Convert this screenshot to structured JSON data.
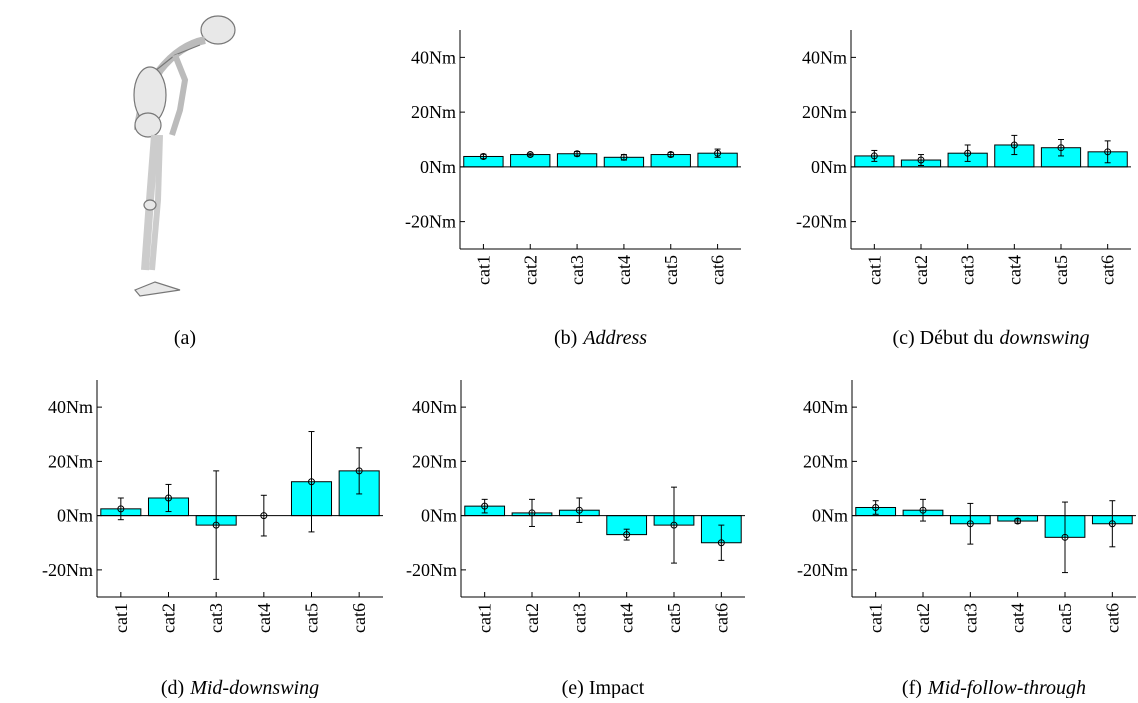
{
  "figure_a": {
    "caption": "(a)"
  },
  "chart_data": [
    {
      "type": "bar",
      "caption": [
        {
          "text": "(b)",
          "italic": false
        },
        {
          "text": "Address",
          "italic": true
        }
      ],
      "categories": [
        "cat1",
        "cat2",
        "cat3",
        "cat4",
        "cat5",
        "cat6"
      ],
      "values": [
        3.8,
        4.5,
        4.8,
        3.5,
        4.5,
        5
      ],
      "errors": [
        0.8,
        0.5,
        0.8,
        1,
        0.8,
        1.5
      ],
      "color": "#00ffff",
      "ylim": [
        -30,
        50
      ],
      "yticks": [
        {
          "value": -20,
          "label": "-20Nm"
        },
        {
          "value": 0,
          "label": "0Nm"
        },
        {
          "value": 20,
          "label": "20Nm"
        },
        {
          "value": 40,
          "label": "40Nm"
        }
      ]
    },
    {
      "type": "bar",
      "caption": [
        {
          "text": "(c) Début du",
          "italic": false
        },
        {
          "text": "downswing",
          "italic": true
        }
      ],
      "categories": [
        "cat1",
        "cat2",
        "cat3",
        "cat4",
        "cat5",
        "cat6"
      ],
      "values": [
        4,
        2.5,
        5,
        8,
        7,
        5.5
      ],
      "errors": [
        2,
        2,
        3,
        3.5,
        3,
        4
      ],
      "color": "#00ffff",
      "ylim": [
        -30,
        50
      ],
      "yticks": [
        {
          "value": -20,
          "label": "-20Nm"
        },
        {
          "value": 0,
          "label": "0Nm"
        },
        {
          "value": 20,
          "label": "20Nm"
        },
        {
          "value": 40,
          "label": "40Nm"
        }
      ]
    },
    {
      "type": "bar",
      "caption": [
        {
          "text": "(d)",
          "italic": false
        },
        {
          "text": "Mid-downswing",
          "italic": true
        }
      ],
      "categories": [
        "cat1",
        "cat2",
        "cat3",
        "cat4",
        "cat5",
        "cat6"
      ],
      "values": [
        2.5,
        6.5,
        -3.5,
        0,
        12.5,
        16.5
      ],
      "errors": [
        4,
        5,
        20,
        7.5,
        18.5,
        8.5
      ],
      "color": "#00ffff",
      "ylim": [
        -30,
        50
      ],
      "yticks": [
        {
          "value": -20,
          "label": "-20Nm"
        },
        {
          "value": 0,
          "label": "0Nm"
        },
        {
          "value": 20,
          "label": "20Nm"
        },
        {
          "value": 40,
          "label": "40Nm"
        }
      ]
    },
    {
      "type": "bar",
      "caption": [
        {
          "text": "(e) Impact",
          "italic": false
        }
      ],
      "categories": [
        "cat1",
        "cat2",
        "cat3",
        "cat4",
        "cat5",
        "cat6"
      ],
      "values": [
        3.5,
        1,
        2,
        -7,
        -3.5,
        -10
      ],
      "errors": [
        2.5,
        5,
        4.5,
        2,
        14,
        6.5
      ],
      "color": "#00ffff",
      "ylim": [
        -30,
        50
      ],
      "yticks": [
        {
          "value": -20,
          "label": "-20Nm"
        },
        {
          "value": 0,
          "label": "0Nm"
        },
        {
          "value": 20,
          "label": "20Nm"
        },
        {
          "value": 40,
          "label": "40Nm"
        }
      ]
    },
    {
      "type": "bar",
      "caption": [
        {
          "text": "(f)",
          "italic": false
        },
        {
          "text": "Mid-follow-through",
          "italic": true
        }
      ],
      "categories": [
        "cat1",
        "cat2",
        "cat3",
        "cat4",
        "cat5",
        "cat6"
      ],
      "values": [
        3,
        2,
        -3,
        -2,
        -8,
        -3
      ],
      "errors": [
        2.5,
        4,
        7.5,
        0.8,
        13,
        8.5
      ],
      "color": "#00ffff",
      "ylim": [
        -30,
        50
      ],
      "yticks": [
        {
          "value": -20,
          "label": "-20Nm"
        },
        {
          "value": 0,
          "label": "0Nm"
        },
        {
          "value": 20,
          "label": "20Nm"
        },
        {
          "value": 40,
          "label": "40Nm"
        }
      ]
    }
  ]
}
